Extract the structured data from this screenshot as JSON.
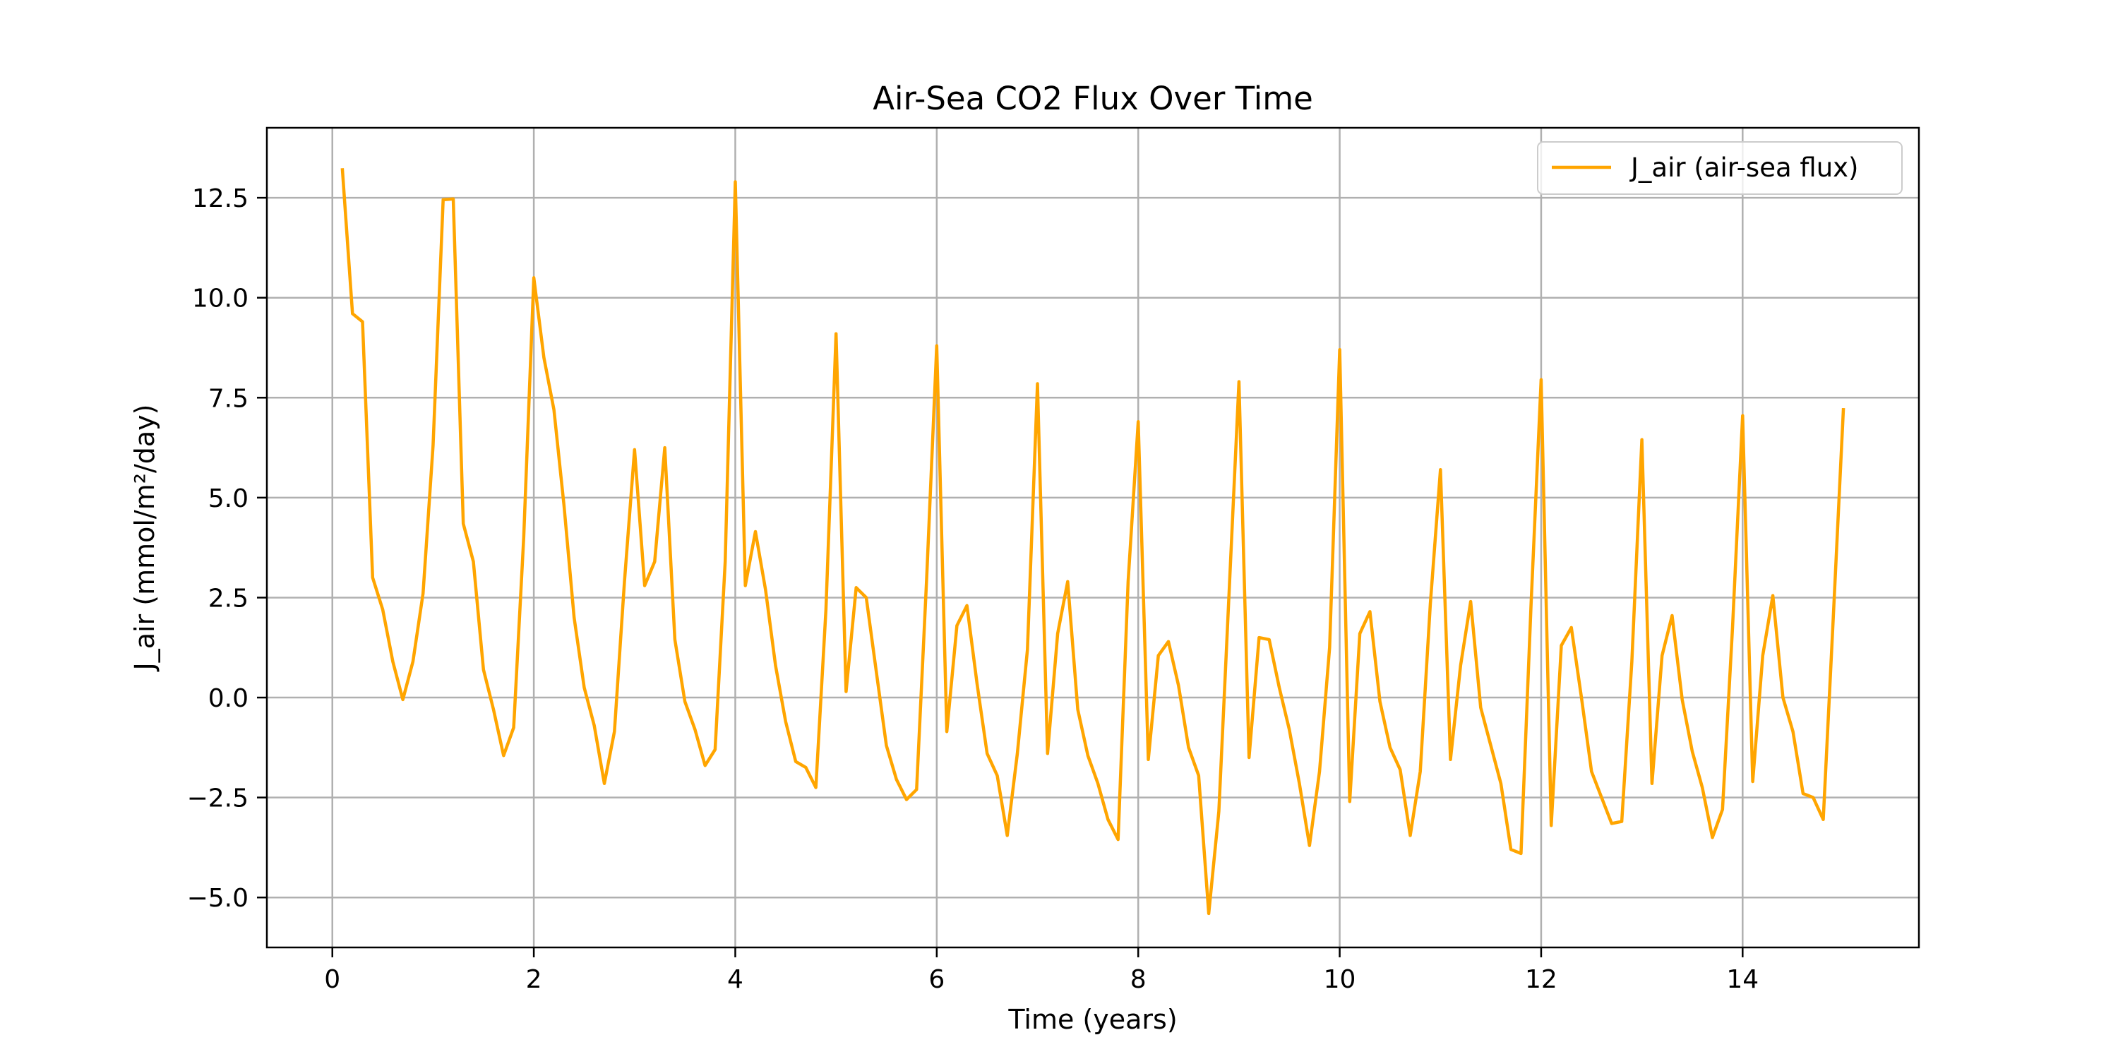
{
  "chart_data": {
    "type": "line",
    "title": "Air-Sea CO2 Flux Over Time",
    "xlabel": "Time (years)",
    "ylabel": "J_air (mmol/m²/day)",
    "xlim": [
      -0.65,
      15.75
    ],
    "ylim": [
      -6.25,
      14.25
    ],
    "xticks": [
      0,
      2,
      4,
      6,
      8,
      10,
      12,
      14
    ],
    "yticks": [
      -5.0,
      -2.5,
      0.0,
      2.5,
      5.0,
      7.5,
      10.0,
      12.5
    ],
    "xtick_labels": [
      "0",
      "2",
      "4",
      "6",
      "8",
      "10",
      "12",
      "14"
    ],
    "ytick_labels": [
      "−5.0",
      "−2.5",
      "0.0",
      "2.5",
      "5.0",
      "7.5",
      "10.0",
      "12.5"
    ],
    "grid": true,
    "legend_position": "upper right",
    "series": [
      {
        "name": "J_air (air-sea flux)",
        "color": "#FFA500",
        "x": [
          0.1,
          0.2,
          0.3,
          0.4,
          0.5,
          0.6,
          0.7,
          0.8,
          0.9,
          1.0,
          1.1,
          1.2,
          1.3,
          1.4,
          1.5,
          1.6,
          1.7,
          1.8,
          1.9,
          2.0,
          2.1,
          2.2,
          2.3,
          2.4,
          2.5,
          2.6,
          2.7,
          2.8,
          2.9,
          3.0,
          3.1,
          3.2,
          3.3,
          3.4,
          3.5,
          3.6,
          3.7,
          3.8,
          3.9,
          4.0,
          4.1,
          4.2,
          4.3,
          4.4,
          4.5,
          4.6,
          4.7,
          4.8,
          4.9,
          5.0,
          5.1,
          5.2,
          5.3,
          5.4,
          5.5,
          5.6,
          5.7,
          5.8,
          5.9,
          6.0,
          6.1,
          6.2,
          6.3,
          6.4,
          6.5,
          6.6,
          6.7,
          6.8,
          6.9,
          7.0,
          7.1,
          7.2,
          7.3,
          7.4,
          7.5,
          7.6,
          7.7,
          7.8,
          7.9,
          8.0,
          8.1,
          8.2,
          8.3,
          8.4,
          8.5,
          8.6,
          8.7,
          8.8,
          8.9,
          9.0,
          9.1,
          9.2,
          9.3,
          9.4,
          9.5,
          9.6,
          9.7,
          9.8,
          9.9,
          10.0,
          10.1,
          10.2,
          10.3,
          10.4,
          10.5,
          10.6,
          10.7,
          10.8,
          10.9,
          11.0,
          11.1,
          11.2,
          11.3,
          11.4,
          11.5,
          11.6,
          11.7,
          11.8,
          11.9,
          12.0,
          12.1,
          12.2,
          12.3,
          12.4,
          12.5,
          12.6,
          12.7,
          12.8,
          12.9,
          13.0,
          13.1,
          13.2,
          13.3,
          13.4,
          13.5,
          13.6,
          13.7,
          13.8,
          13.9,
          14.0,
          14.1,
          14.2,
          14.3,
          14.4,
          14.5,
          14.6,
          14.7,
          14.8,
          14.9,
          15.0
        ],
        "y": [
          13.2,
          9.6,
          9.4,
          3.0,
          2.2,
          0.9,
          -0.05,
          0.9,
          2.6,
          6.3,
          12.45,
          12.47,
          4.35,
          3.4,
          0.7,
          -0.3,
          -1.45,
          -0.75,
          4.0,
          10.5,
          8.5,
          7.2,
          4.8,
          2.0,
          0.25,
          -0.7,
          -2.15,
          -0.85,
          2.9,
          6.2,
          2.8,
          3.4,
          6.25,
          1.45,
          -0.1,
          -0.8,
          -1.7,
          -1.3,
          3.4,
          12.9,
          2.8,
          4.15,
          2.7,
          0.8,
          -0.6,
          -1.6,
          -1.75,
          -2.25,
          2.2,
          9.1,
          0.15,
          2.75,
          2.5,
          0.65,
          -1.2,
          -2.05,
          -2.55,
          -2.3,
          3.0,
          8.8,
          -0.85,
          1.8,
          2.3,
          0.35,
          -1.4,
          -1.95,
          -3.45,
          -1.4,
          1.2,
          7.85,
          -1.4,
          1.6,
          2.9,
          -0.3,
          -1.45,
          -2.15,
          -3.05,
          -3.55,
          2.9,
          6.9,
          -1.55,
          1.05,
          1.4,
          0.3,
          -1.25,
          -1.95,
          -5.4,
          -2.85,
          2.5,
          7.9,
          -1.5,
          1.5,
          1.45,
          0.25,
          -0.8,
          -2.15,
          -3.7,
          -1.85,
          1.25,
          8.7,
          -2.6,
          1.6,
          2.15,
          -0.1,
          -1.25,
          -1.8,
          -3.45,
          -1.85,
          2.35,
          5.7,
          -1.55,
          0.8,
          2.4,
          -0.25,
          -1.2,
          -2.15,
          -3.8,
          -3.9,
          2.35,
          7.95,
          -3.2,
          1.3,
          1.75,
          0.0,
          -1.85,
          -2.5,
          -3.15,
          -3.1,
          0.9,
          6.45,
          -2.15,
          1.05,
          2.05,
          -0.05,
          -1.35,
          -2.25,
          -3.5,
          -2.8,
          1.75,
          7.05,
          -2.1,
          1.05,
          2.55,
          0.0,
          -0.85,
          -2.4,
          -2.5,
          -3.05,
          2.0,
          7.2
        ]
      }
    ]
  }
}
